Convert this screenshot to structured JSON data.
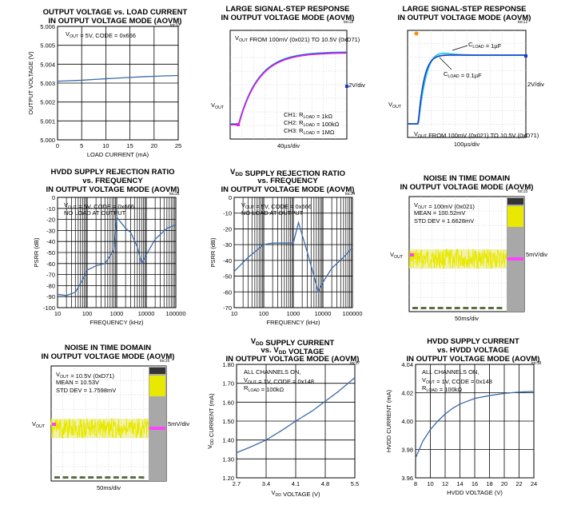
{
  "figures": [
    {
      "id": "toc11",
      "toc": "toc11"
    },
    {
      "id": "toc12",
      "toc": "toc12"
    }
  ],
  "chart_data": [
    {
      "id": "p1",
      "type": "line",
      "title": [
        "OUTPUT VOLTAGE vs. LOAD CURRENT",
        "IN OUTPUT VOLTAGE MODE (AOVM)"
      ],
      "toc": "toc10",
      "xlabel": "LOAD CURRENT (mA)",
      "ylabel": "OUTPUT VOLTAGE (V)",
      "xlim": [
        0,
        25
      ],
      "ylim": [
        5.0,
        5.006
      ],
      "xticks": [
        "0",
        "5",
        "10",
        "15",
        "20",
        "25"
      ],
      "yticks": [
        "5.000",
        "5.001",
        "5.002",
        "5.003",
        "5.004",
        "5.005",
        "5.006"
      ],
      "annotations": [
        "V_OUT = 5V, CODE = 0x666"
      ],
      "series": [
        {
          "x": [
            0,
            2,
            5,
            8,
            10,
            12,
            15,
            18,
            20,
            22,
            25
          ],
          "y": [
            5.0031,
            5.00312,
            5.00315,
            5.0032,
            5.00323,
            5.00326,
            5.0033,
            5.00334,
            5.00336,
            5.00338,
            5.0034
          ]
        }
      ]
    },
    {
      "id": "p2",
      "type": "line",
      "title": [
        "LARGE SIGNAL-STEP RESPONSE",
        "IN OUTPUT VOLTAGE MODE (AOVM)"
      ],
      "toc": "toc11",
      "xlabel": "40µs/div",
      "ylabel_right": "2V/div",
      "left_label": "V_OUT",
      "annotations": [
        "V_OUT FROM 100mV (0x021) TO 10.5V (0xD71)",
        "CH1: R_LOAD = 1kΩ",
        "CH2: R_LOAD = 100kΩ",
        "CH3: R_LOAD = 1MΩ"
      ],
      "series": [
        {
          "name": "CH1",
          "color": "#e020e0"
        },
        {
          "name": "CH2",
          "color": "#1a3ac8"
        },
        {
          "name": "CH3",
          "color": "#20c0d0"
        }
      ]
    },
    {
      "id": "p3",
      "type": "line",
      "title": [
        "LARGE SIGNAL-STEP RESPONSE",
        "IN OUTPUT VOLTAGE MODE (AOVM)"
      ],
      "toc": "toc12",
      "xlabel": "100µs/div",
      "ylabel_right": "2V/div",
      "left_label": "V_OUT",
      "annotations": [
        "C_LOAD = 1µF",
        "C_LOAD = 0.1µF",
        "V_OUT FROM 100mV (0x021) TO 10.5V (0xD71)"
      ],
      "series": [
        {
          "name": "C_LOAD = 1µF",
          "color": "#30d0e0"
        },
        {
          "name": "C_LOAD = 0.1µF",
          "color": "#1a3ac8"
        }
      ]
    },
    {
      "id": "p4",
      "type": "line",
      "title": [
        "HVDD SUPPLY REJECTION RATIO",
        "vs. FREQUENCY",
        "IN OUTPUT VOLTAGE MODE (AOVM)"
      ],
      "toc": "toc13",
      "xlabel": "FREQUENCY (kHz)",
      "ylabel": "PSRR (dB)",
      "xscale": "log",
      "xlim": [
        10,
        100000
      ],
      "ylim": [
        -100,
        0
      ],
      "xticks": [
        "10",
        "100",
        "1000",
        "10000",
        "100000"
      ],
      "yticks": [
        "0",
        "-10",
        "-20",
        "-30",
        "-40",
        "-50",
        "-60",
        "-70",
        "-80",
        "-90",
        "-100"
      ],
      "annotations": [
        "V_OUT = 5V, CODE = 0x666",
        "NO LOAD AT OUTPUT"
      ],
      "series": [
        {
          "x": [
            10,
            20,
            40,
            70,
            100,
            200,
            400,
            800,
            1000,
            2000,
            3000,
            5000,
            7000,
            10000,
            20000,
            50000,
            100000
          ],
          "y": [
            -88,
            -89,
            -86,
            -75,
            -66,
            -62,
            -60,
            -48,
            -18,
            -28,
            -32,
            -45,
            -60,
            -52,
            -38,
            -28,
            -25
          ]
        }
      ]
    },
    {
      "id": "p5",
      "type": "line",
      "title": [
        "V_DD SUPPLY REJECTION RATIO",
        "vs. FREQUENCY",
        "IN OUTPUT VOLTAGE MODE (AOVM)"
      ],
      "toc": "toc14",
      "xlabel": "FREQUENCY (kHz)",
      "ylabel": "PSRR (dB)",
      "xscale": "log",
      "xlim": [
        10,
        100000
      ],
      "ylim": [
        -70,
        0
      ],
      "xticks": [
        "10",
        "100",
        "1000",
        "10000",
        "100000"
      ],
      "yticks": [
        "0",
        "-10",
        "-20",
        "-30",
        "-40",
        "-50",
        "-60",
        "-70"
      ],
      "annotations": [
        "V_OUT = 5V, CODE = 0x666",
        "NO LOAD AT OUTPUT"
      ],
      "series": [
        {
          "x": [
            10,
            30,
            100,
            200,
            500,
            1000,
            1500,
            2000,
            3000,
            5000,
            7000,
            10000,
            20000,
            50000,
            100000
          ],
          "y": [
            -47,
            -38,
            -30,
            -29,
            -29,
            -29,
            -16,
            -24,
            -35,
            -50,
            -60,
            -54,
            -45,
            -38,
            -32
          ]
        }
      ]
    },
    {
      "id": "p6",
      "type": "line",
      "title": [
        "NOISE IN TIME DOMAIN",
        "IN OUTPUT VOLTAGE MODE (AOVM)"
      ],
      "toc": "toc15",
      "xlabel": "50ms/div",
      "ylabel_right": "5mV/div",
      "left_label": "V_OUT",
      "annotations": [
        "V_OUT = 100mV (0x021)",
        "MEAN = 100.52mV",
        "STD DEV = 1.6628mV"
      ],
      "series": [
        {
          "name": "noise",
          "color": "#e8e800"
        }
      ]
    },
    {
      "id": "p7",
      "type": "line",
      "title": [
        "NOISE IN TIME DOMAIN",
        "IN OUTPUT VOLTAGE MODE (AOVM)"
      ],
      "toc": "toc16",
      "xlabel": "50ms/div",
      "ylabel_right": "5mV/div",
      "left_label": "V_OUT",
      "annotations": [
        "V_OUT = 10.5V (0xD71)",
        "MEAN = 10.53V",
        "STD DEV = 1.7598mV"
      ],
      "series": [
        {
          "name": "noise",
          "color": "#e8e800"
        }
      ]
    },
    {
      "id": "p8",
      "type": "line",
      "title": [
        "V_DD SUPPLY CURRENT",
        "vs. V_DD VOLTAGE",
        "IN OUTPUT VOLTAGE MODE (AOVM)"
      ],
      "toc": "toc17",
      "xlabel": "V_DD VOLTAGE (V)",
      "ylabel": "V_DD CURRENT (mA)",
      "xlim": [
        2.7,
        5.5
      ],
      "ylim": [
        1.2,
        1.8
      ],
      "xticks": [
        "2.7",
        "3.4",
        "4.1",
        "4.8",
        "5.5"
      ],
      "yticks": [
        "1.80",
        "1.70",
        "1.60",
        "1.50",
        "1.40",
        "1.30",
        "1.20"
      ],
      "annotations": [
        "ALL CHANNELS ON,",
        "V_OUT = 1V, CODE = 0x148",
        "R_LOAD = 100kΩ"
      ],
      "series": [
        {
          "x": [
            2.7,
            3.0,
            3.4,
            3.8,
            4.1,
            4.5,
            4.8,
            5.1,
            5.5
          ],
          "y": [
            1.333,
            1.36,
            1.4,
            1.455,
            1.5,
            1.555,
            1.605,
            1.655,
            1.73
          ]
        }
      ]
    },
    {
      "id": "p9",
      "type": "line",
      "title": [
        "HVDD SUPPLY CURRENT",
        "vs. HVDD VOLTAGE",
        "IN OUTPUT VOLTAGE MODE (AOVM)"
      ],
      "toc": "toc18",
      "xlabel": "HVDD VOLTAGE (V)",
      "ylabel": "HVDD CURRENT (mA)",
      "xlim": [
        8,
        24
      ],
      "ylim": [
        3.96,
        4.04
      ],
      "xticks": [
        "8",
        "10",
        "12",
        "14",
        "16",
        "18",
        "20",
        "22",
        "24"
      ],
      "yticks": [
        "4.04",
        "4.02",
        "4.00",
        "3.98",
        "3.96"
      ],
      "annotations": [
        "ALL CHANNELS ON,",
        "V_OUT = 1V, CODE = 0x148",
        "R_LOAD = 100kΩ"
      ],
      "series": [
        {
          "x": [
            8,
            9,
            10,
            11,
            12,
            13,
            14,
            16,
            18,
            20,
            22,
            24
          ],
          "y": [
            3.974,
            3.986,
            3.994,
            4.0,
            4.005,
            4.009,
            4.012,
            4.016,
            4.018,
            4.0195,
            4.0205,
            4.021
          ]
        }
      ]
    }
  ]
}
